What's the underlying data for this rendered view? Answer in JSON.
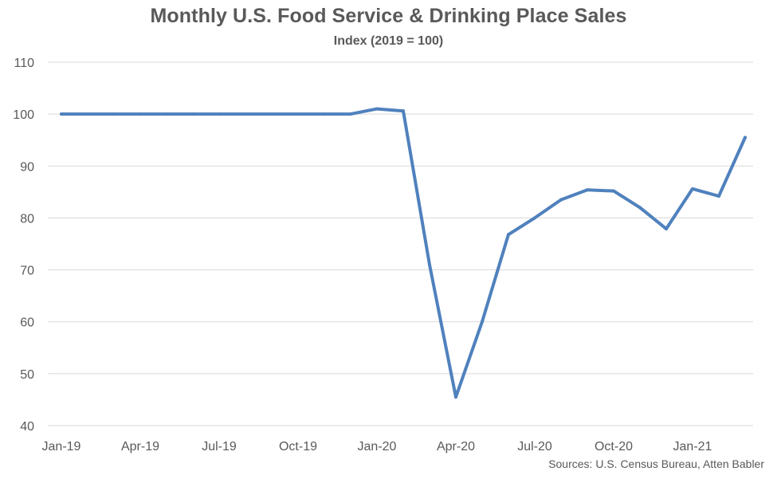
{
  "header": {
    "title": "Monthly U.S. Food Service & Drinking Place Sales",
    "subtitle": "Index (2019 = 100)"
  },
  "footer": {
    "source": "Sources: U.S. Census Bureau, Atten Babler"
  },
  "colors": {
    "line": "#4F81BD",
    "grid": "#D9D9D9",
    "text": "#595959"
  },
  "chart_data": {
    "type": "line",
    "title": "Monthly U.S. Food Service & Drinking Place Sales",
    "subtitle": "Index (2019 = 100)",
    "xlabel": "",
    "ylabel": "",
    "ylim": [
      40,
      110
    ],
    "y_ticks": [
      40,
      50,
      60,
      70,
      80,
      90,
      100,
      110
    ],
    "x_tick_labels": [
      "Jan-19",
      "Apr-19",
      "Jul-19",
      "Oct-19",
      "Jan-20",
      "Apr-20",
      "Jul-20",
      "Oct-20",
      "Jan-21"
    ],
    "x_tick_every": 3,
    "grid": true,
    "legend": "none",
    "categories": [
      "Jan-19",
      "Feb-19",
      "Mar-19",
      "Apr-19",
      "May-19",
      "Jun-19",
      "Jul-19",
      "Aug-19",
      "Sep-19",
      "Oct-19",
      "Nov-19",
      "Dec-19",
      "Jan-20",
      "Feb-20",
      "Mar-20",
      "Apr-20",
      "May-20",
      "Jun-20",
      "Jul-20",
      "Aug-20",
      "Sep-20",
      "Oct-20",
      "Nov-20",
      "Dec-20",
      "Jan-21",
      "Feb-21",
      "Mar-21"
    ],
    "series": [
      {
        "values": [
          100,
          100,
          100,
          100,
          100,
          100,
          100,
          100,
          100,
          100,
          100,
          100,
          101,
          100.6,
          71,
          45.5,
          60,
          76.8,
          80,
          83.5,
          85.4,
          85.2,
          82,
          77.9,
          85.6,
          84.2,
          95.5
        ]
      }
    ]
  }
}
